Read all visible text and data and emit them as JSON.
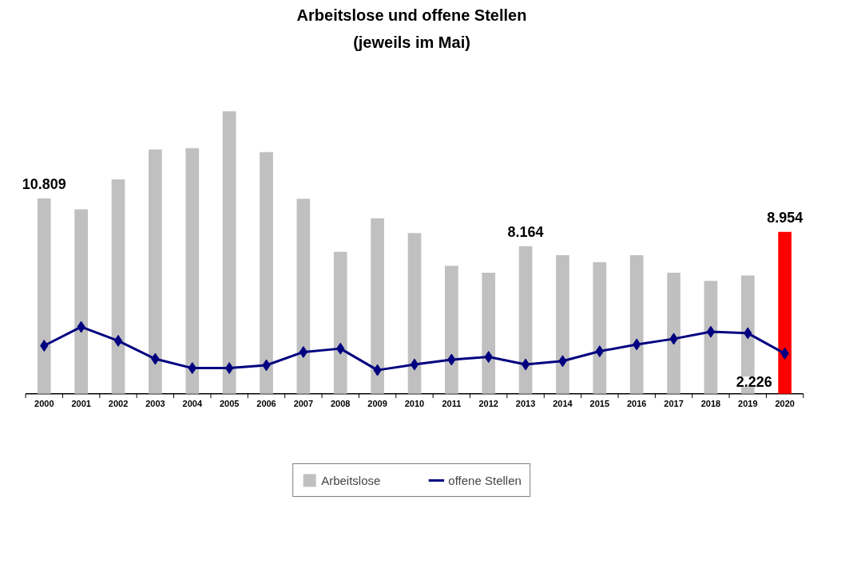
{
  "chart_data": {
    "type": "bar",
    "title": "Arbeitslose und offene Stellen",
    "subtitle": "(jeweils im Mai)",
    "categories": [
      "2000",
      "2001",
      "2002",
      "2003",
      "2004",
      "2005",
      "2006",
      "2007",
      "2008",
      "2009",
      "2010",
      "2011",
      "2012",
      "2013",
      "2014",
      "2015",
      "2016",
      "2017",
      "2018",
      "2019",
      "2020"
    ],
    "series": [
      {
        "name": "Arbeitslose",
        "color": "#c0c0c0",
        "colors": [
          "#c0c0c0",
          "#c0c0c0",
          "#c0c0c0",
          "#c0c0c0",
          "#c0c0c0",
          "#c0c0c0",
          "#c0c0c0",
          "#c0c0c0",
          "#c0c0c0",
          "#c0c0c0",
          "#c0c0c0",
          "#c0c0c0",
          "#c0c0c0",
          "#c0c0c0",
          "#c0c0c0",
          "#c0c0c0",
          "#c0c0c0",
          "#c0c0c0",
          "#c0c0c0",
          "#c0c0c0",
          "#ff0000"
        ],
        "values": [
          10809,
          10200,
          11860,
          13510,
          13590,
          15630,
          13360,
          10780,
          7850,
          9700,
          8890,
          7080,
          6700,
          8164,
          7660,
          7280,
          7660,
          6700,
          6240,
          6540,
          8954
        ],
        "value_labels": [
          "10.809",
          null,
          null,
          null,
          null,
          null,
          null,
          null,
          null,
          null,
          null,
          null,
          null,
          "8.164",
          null,
          null,
          null,
          null,
          null,
          null,
          "8.954"
        ]
      },
      {
        "name": "offene Stellen",
        "type": "line",
        "color": "#000080",
        "marker": "diamond",
        "values": [
          2660,
          3700,
          2930,
          1930,
          1420,
          1420,
          1580,
          2310,
          2500,
          1310,
          1620,
          1890,
          2040,
          1620,
          1810,
          2350,
          2730,
          3040,
          3430,
          3350,
          2226
        ],
        "value_labels": [
          null,
          null,
          null,
          null,
          null,
          null,
          null,
          null,
          null,
          null,
          null,
          null,
          null,
          null,
          null,
          null,
          null,
          null,
          null,
          null,
          "2.226"
        ]
      }
    ],
    "legend": "bottom",
    "grid": false
  }
}
